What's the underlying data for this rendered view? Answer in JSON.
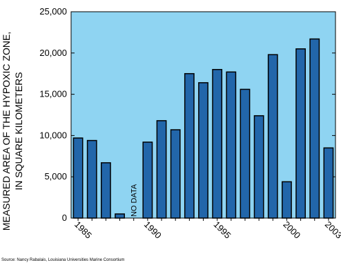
{
  "chart_data": {
    "type": "bar",
    "ylabel": [
      "MEASURED AREA OF THE HYPOXIC ZONE,",
      "IN SQUARE KILOMETERS"
    ],
    "categories": [
      "1985",
      null,
      null,
      null,
      null,
      "1990",
      null,
      null,
      null,
      null,
      "1995",
      null,
      null,
      null,
      null,
      "2000",
      null,
      null,
      "2003"
    ],
    "values": [
      9700,
      9400,
      6700,
      500,
      null,
      9200,
      11800,
      10700,
      17500,
      16400,
      18000,
      17700,
      15600,
      12400,
      19800,
      4400,
      20500,
      21700,
      8500
    ],
    "color": "#2266aa",
    "background": "#8fd4f2",
    "ylim": [
      0,
      25000
    ],
    "yticks": [
      0,
      {
        "value": 5000,
        "label": "5,000"
      },
      {
        "value": 10000,
        "label": "10,000"
      },
      {
        "value": 15000,
        "label": "15,000"
      },
      {
        "value": 20000,
        "label": "20,000"
      },
      {
        "value": 25000,
        "label": "25,000"
      }
    ],
    "annotation": "NO DATA",
    "source": "Source: Nancy Rabalais, Louisiana Universities Marine Consortium"
  }
}
